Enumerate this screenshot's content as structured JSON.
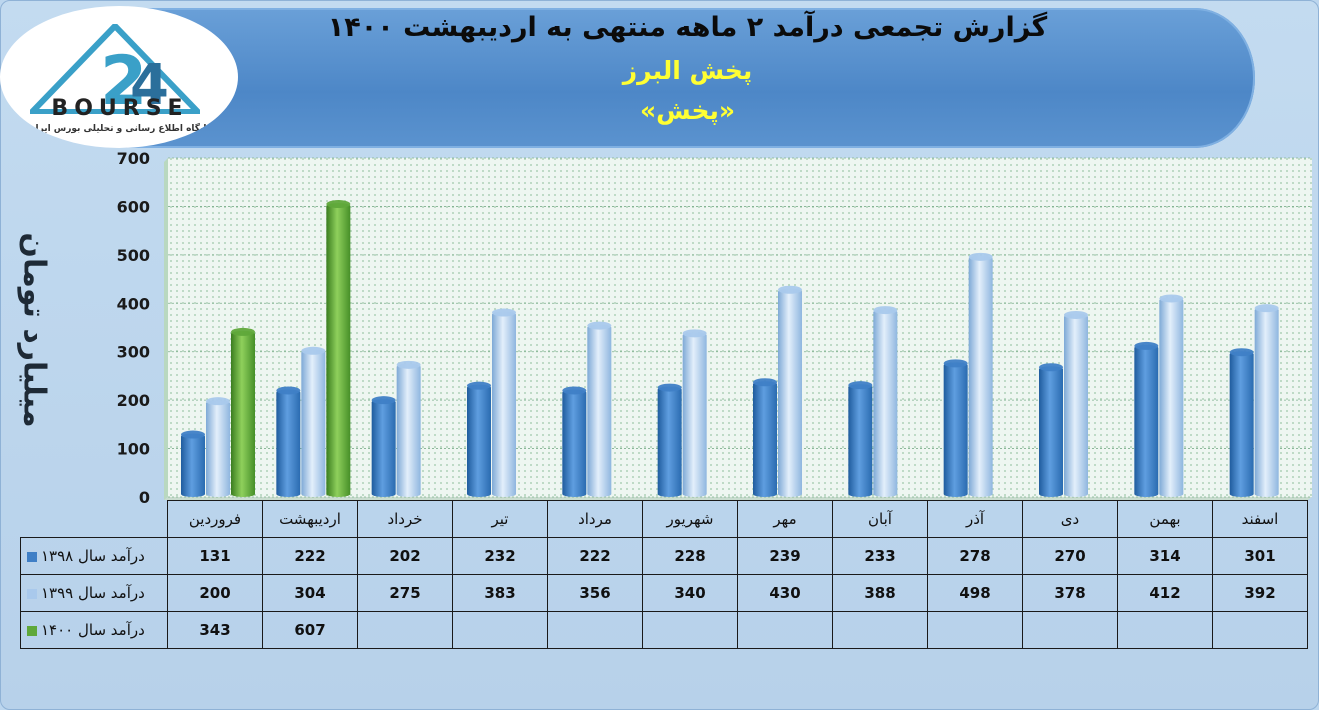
{
  "header": {
    "title": "گزارش تجمعی درآمد ۲ ماهه منتهی به اردیبهشت ۱۴۰۰",
    "company": "پخش البرز",
    "symbol": "«پخش»"
  },
  "logo": {
    "word": "BOURSE",
    "tagline": "پایگاه اطلاع رسانی و تحلیلی بورس ایران"
  },
  "chart_data": {
    "type": "bar",
    "ylabel": "میلیارد تومان",
    "ylim": [
      0,
      700
    ],
    "yticks": [
      "0",
      "100",
      "200",
      "300",
      "400",
      "500",
      "600",
      "700"
    ],
    "categories": [
      "فروردین",
      "اردیبهشت",
      "خرداد",
      "تیر",
      "مرداد",
      "شهریور",
      "مهر",
      "آبان",
      "آذر",
      "دی",
      "بهمن",
      "اسفند"
    ],
    "series": [
      {
        "name": "درآمد سال ۱۳۹۸",
        "color": "#3f7fc6",
        "values": [
          131,
          222,
          202,
          232,
          222,
          228,
          239,
          233,
          278,
          270,
          314,
          301
        ]
      },
      {
        "name": "درآمد سال ۱۳۹۹",
        "color": "#a9c9ec",
        "values": [
          200,
          304,
          275,
          383,
          356,
          340,
          430,
          388,
          498,
          378,
          412,
          392
        ]
      },
      {
        "name": "درآمد سال ۱۴۰۰",
        "color": "#5fa83a",
        "values": [
          343,
          607,
          null,
          null,
          null,
          null,
          null,
          null,
          null,
          null,
          null,
          null
        ]
      }
    ],
    "table": {
      "rows": [
        [
          "131",
          "222",
          "202",
          "232",
          "222",
          "228",
          "239",
          "233",
          "278",
          "270",
          "314",
          "301"
        ],
        [
          "200",
          "304",
          "275",
          "383",
          "356",
          "340",
          "430",
          "388",
          "498",
          "378",
          "412",
          "392"
        ],
        [
          "343",
          "607",
          "",
          "",
          "",
          "",
          "",
          "",
          "",
          "",
          "",
          ""
        ]
      ]
    },
    "grid": true,
    "legend": "table-left"
  }
}
